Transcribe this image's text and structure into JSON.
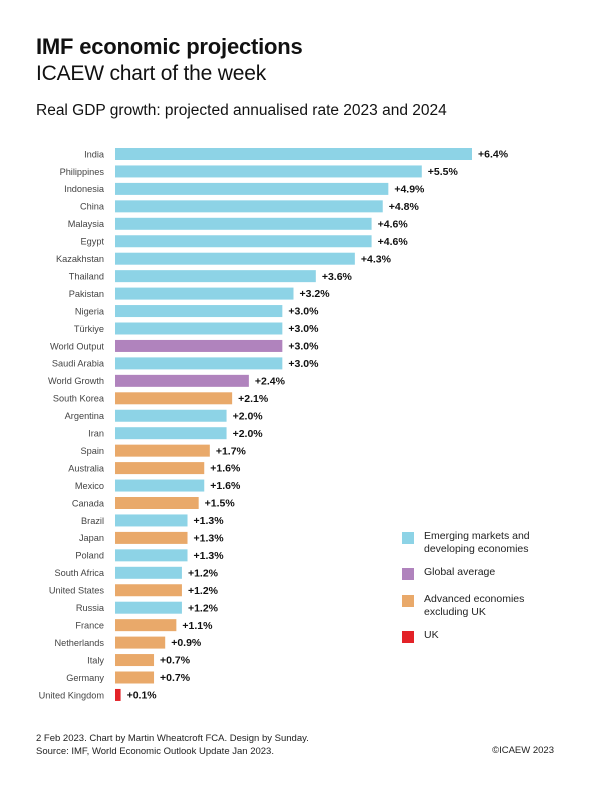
{
  "header": {
    "title": "IMF economic projections",
    "subtitle": "ICAEW chart of the week",
    "chart_title": "Real GDP growth: projected annualised rate 2023 and 2024"
  },
  "colors": {
    "emerging": "#8dd3e6",
    "global": "#b083bd",
    "advanced": "#e9a96a",
    "uk": "#e32228"
  },
  "legend": [
    {
      "group": "emerging",
      "label": "Emerging markets and developing economies"
    },
    {
      "group": "global",
      "label": "Global average"
    },
    {
      "group": "advanced",
      "label": "Advanced economies excluding UK"
    },
    {
      "group": "uk",
      "label": "UK"
    }
  ],
  "chart_data": {
    "type": "bar",
    "orientation": "horizontal",
    "categories": [
      "India",
      "Philippines",
      "Indonesia",
      "China",
      "Malaysia",
      "Egypt",
      "Kazakhstan",
      "Thailand",
      "Pakistan",
      "Nigeria",
      "Türkiye",
      "World Output",
      "Saudi Arabia",
      "World Growth",
      "South Korea",
      "Argentina",
      "Iran",
      "Spain",
      "Australia",
      "Mexico",
      "Canada",
      "Brazil",
      "Japan",
      "Poland",
      "South Africa",
      "United States",
      "Russia",
      "France",
      "Netherlands",
      "Italy",
      "Germany",
      "United Kingdom"
    ],
    "values": [
      6.4,
      5.5,
      4.9,
      4.8,
      4.6,
      4.6,
      4.3,
      3.6,
      3.2,
      3.0,
      3.0,
      3.0,
      3.0,
      2.4,
      2.1,
      2.0,
      2.0,
      1.7,
      1.6,
      1.6,
      1.5,
      1.3,
      1.3,
      1.3,
      1.2,
      1.2,
      1.2,
      1.1,
      0.9,
      0.7,
      0.7,
      0.1
    ],
    "labels": [
      "+6.4%",
      "+5.5%",
      "+4.9%",
      "+4.8%",
      "+4.6%",
      "+4.6%",
      "+4.3%",
      "+3.6%",
      "+3.2%",
      "+3.0%",
      "+3.0%",
      "+3.0%",
      "+3.0%",
      "+2.4%",
      "+2.1%",
      "+2.0%",
      "+2.0%",
      "+1.7%",
      "+1.6%",
      "+1.6%",
      "+1.5%",
      "+1.3%",
      "+1.3%",
      "+1.3%",
      "+1.2%",
      "+1.2%",
      "+1.2%",
      "+1.1%",
      "+0.9%",
      "+0.7%",
      "+0.7%",
      "+0.1%"
    ],
    "groups": [
      "emerging",
      "emerging",
      "emerging",
      "emerging",
      "emerging",
      "emerging",
      "emerging",
      "emerging",
      "emerging",
      "emerging",
      "emerging",
      "global",
      "emerging",
      "global",
      "advanced",
      "emerging",
      "emerging",
      "advanced",
      "advanced",
      "emerging",
      "advanced",
      "emerging",
      "advanced",
      "emerging",
      "emerging",
      "advanced",
      "emerging",
      "advanced",
      "advanced",
      "advanced",
      "advanced",
      "uk"
    ],
    "title": "Real GDP growth: projected annualised rate 2023 and 2024",
    "xlim": [
      0,
      6.4
    ],
    "grid": false,
    "legend_position": "bottom-right"
  },
  "footer": {
    "line1": "2 Feb 2023. Chart by Martin Wheatcroft FCA. Design by Sunday.",
    "line2": "Source: IMF, World Economic Outlook Update Jan 2023.",
    "copyright": "©ICAEW 2023"
  }
}
